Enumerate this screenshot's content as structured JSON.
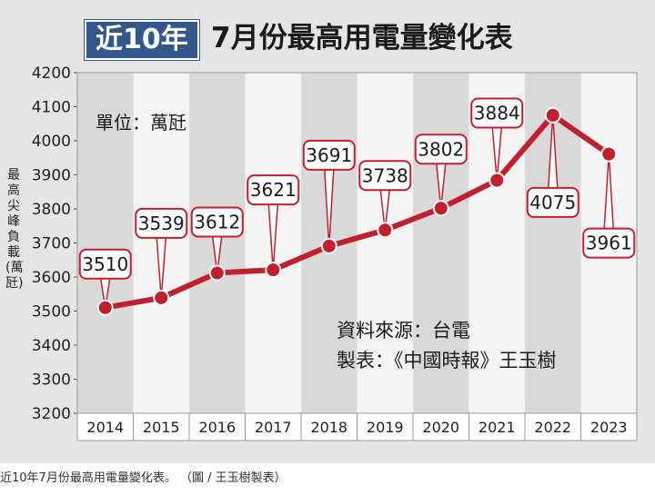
{
  "title": {
    "badge": "近10年",
    "text": "7月份最高用電量變化表"
  },
  "caption": "近10年7月份最高用電量變化表。 （圖 / 王玉樹製表）",
  "chart_data": {
    "type": "line",
    "categories": [
      "2014",
      "2015",
      "2016",
      "2017",
      "2018",
      "2019",
      "2020",
      "2021",
      "2022",
      "2023"
    ],
    "series": [
      {
        "values": [
          3510,
          3539,
          3612,
          3621,
          3691,
          3738,
          3802,
          3884,
          4075,
          3961
        ]
      }
    ],
    "data_labels": [
      "3510",
      "3539",
      "3612",
      "3621",
      "3691",
      "3738",
      "3802",
      "3884",
      "4075",
      "3961"
    ],
    "ylabel": "最高尖峰負載(萬瓩)",
    "ylim": [
      3200,
      4200
    ],
    "yticks": [
      "3200",
      "3300",
      "3400",
      "3500",
      "3600",
      "3700",
      "3800",
      "3900",
      "4000",
      "4100",
      "4200"
    ],
    "unit_note": "單位：萬瓩",
    "source_note": "資料來源：台電",
    "maker_note": "製表：《中國時報》王玉樹",
    "grid": "alternating column bands",
    "line_color": "#c0202e",
    "band_color": "#d9d9d9"
  }
}
